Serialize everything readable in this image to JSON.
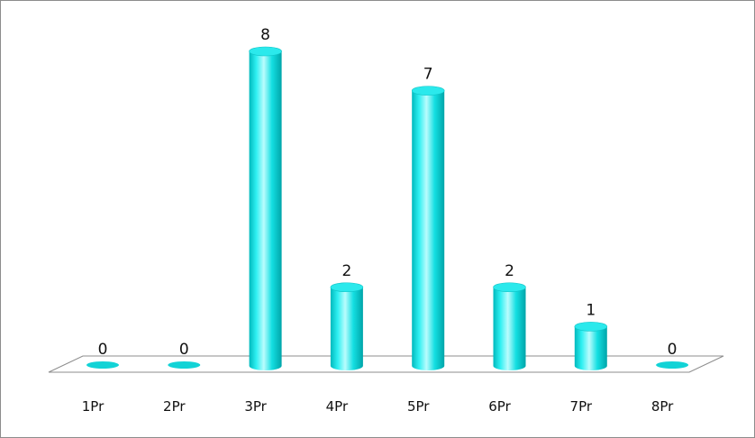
{
  "chart_data": {
    "type": "bar",
    "style": "3d-cylinder",
    "categories": [
      "1Pr",
      "2Pr",
      "3Pr",
      "4Pr",
      "5Pr",
      "6Pr",
      "7Pr",
      "8Pr"
    ],
    "series": [
      {
        "values": [
          0,
          0,
          8,
          2,
          7,
          2,
          1,
          0
        ],
        "color": "#00e5e8"
      }
    ],
    "data_labels": [
      "0",
      "0",
      "8",
      "2",
      "7",
      "2",
      "1",
      "0"
    ],
    "ylim": [
      0,
      8
    ],
    "grid": false,
    "legend": "none"
  }
}
